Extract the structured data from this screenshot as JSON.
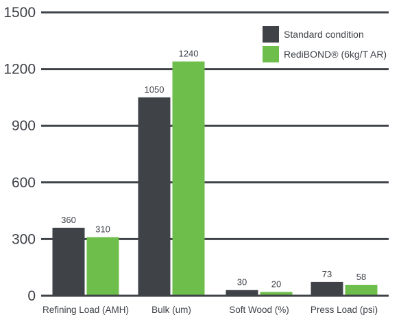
{
  "chart_data": {
    "type": "bar",
    "categories": [
      "Refining Load (AMH)",
      "Bulk (um)",
      "Soft Wood (%)",
      "Press Load (psi)"
    ],
    "series": [
      {
        "name": "Standard condition",
        "values": [
          360,
          1050,
          30,
          73
        ],
        "data_labels": [
          "360",
          "1050",
          "30",
          "73"
        ],
        "color": "#3f4348"
      },
      {
        "name": "RediBOND® (6kg/T AR)",
        "values": [
          310,
          1240,
          20,
          58
        ],
        "data_labels": [
          "310",
          "1240",
          "20",
          "58"
        ],
        "color": "#6ebe4b"
      }
    ],
    "ylim": [
      0,
      1500
    ],
    "yticks": [
      0,
      300,
      600,
      900,
      1200,
      1500
    ],
    "ytick_labels": [
      "0",
      "300",
      "600",
      "900",
      "1200",
      "1500"
    ],
    "grid": true,
    "gridline_color": "#3f4348",
    "legend_position": "top-right",
    "title": "",
    "xlabel": "",
    "ylabel": ""
  }
}
